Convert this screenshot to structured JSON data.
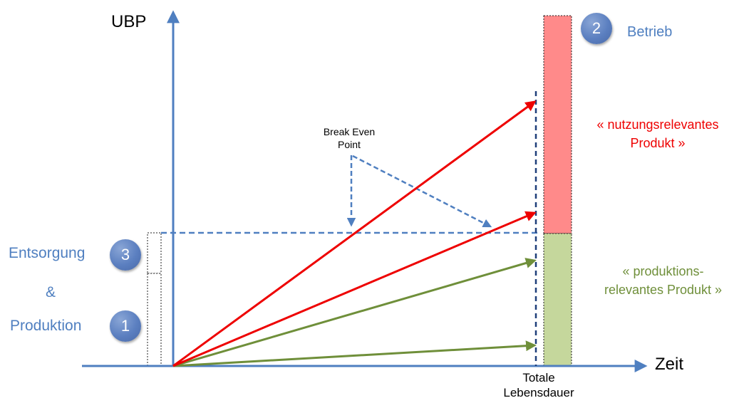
{
  "axes": {
    "y_label": "UBP",
    "x_label": "Zeit",
    "x_tick": [
      "Totale",
      "Lebensdauer"
    ]
  },
  "badges": [
    {
      "number": "1",
      "label": "Produktion"
    },
    {
      "number": "2",
      "label": "Betrieb"
    },
    {
      "number": "3",
      "label": "Entsorgung"
    }
  ],
  "connector": "&",
  "break_even": [
    "Break Even",
    "Point"
  ],
  "categories": {
    "usage": [
      "« nutzungsrelevantes",
      "Produkt »"
    ],
    "production": [
      "« produktions-",
      "relevantes Produkt »"
    ]
  },
  "colors": {
    "axis": "#4f7fc0",
    "label_blue": "#4f7fc0",
    "usage": "#ee0000",
    "production": "#6f8f3a",
    "bar_usage": "#ff8a8a",
    "bar_production": "#c5d79c"
  }
}
